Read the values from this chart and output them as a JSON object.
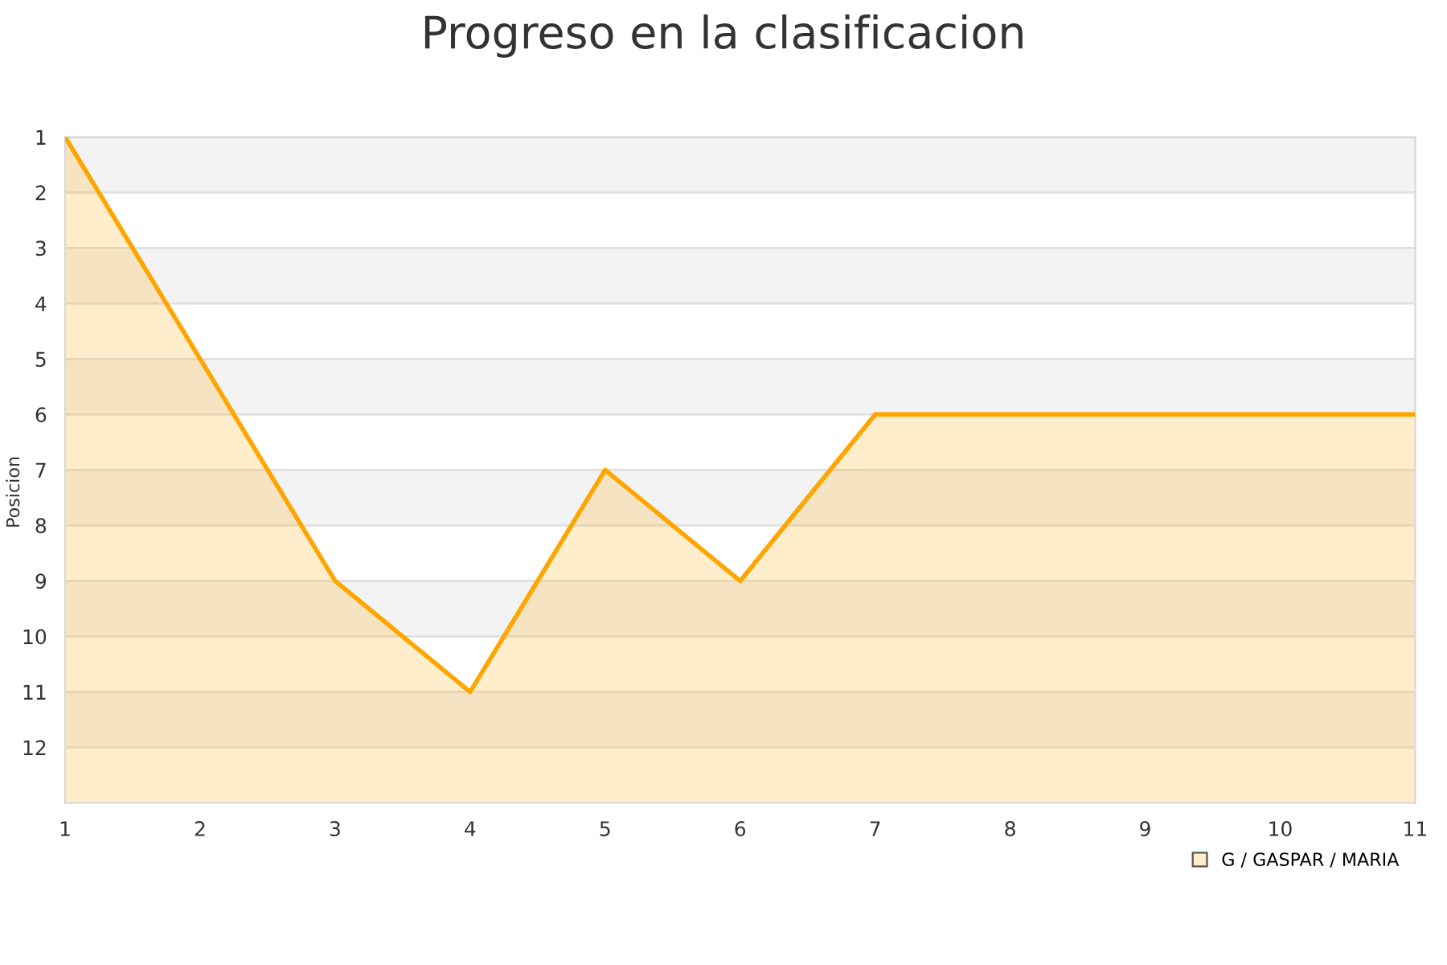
{
  "chart_data": {
    "type": "area",
    "title": "Progreso en la clasificacion",
    "ylabel": "Posicion",
    "x": [
      1,
      2,
      3,
      4,
      5,
      6,
      7,
      8,
      9,
      10,
      11
    ],
    "series": [
      {
        "name": "G / GASPAR / MARIA",
        "color": "#ffa500",
        "values": [
          1,
          5,
          9,
          11,
          7,
          9,
          6,
          6,
          6,
          6,
          6
        ]
      }
    ],
    "xlim": [
      1,
      11
    ],
    "xticks": [
      1,
      2,
      3,
      4,
      5,
      6,
      7,
      8,
      9,
      10,
      11
    ],
    "ylim": [
      13,
      1
    ],
    "yticks": [
      1,
      2,
      3,
      4,
      5,
      6,
      7,
      8,
      9,
      10,
      11,
      12
    ],
    "grid": "y",
    "legend": "bottom right",
    "marker": "none",
    "line_style": "solid"
  }
}
